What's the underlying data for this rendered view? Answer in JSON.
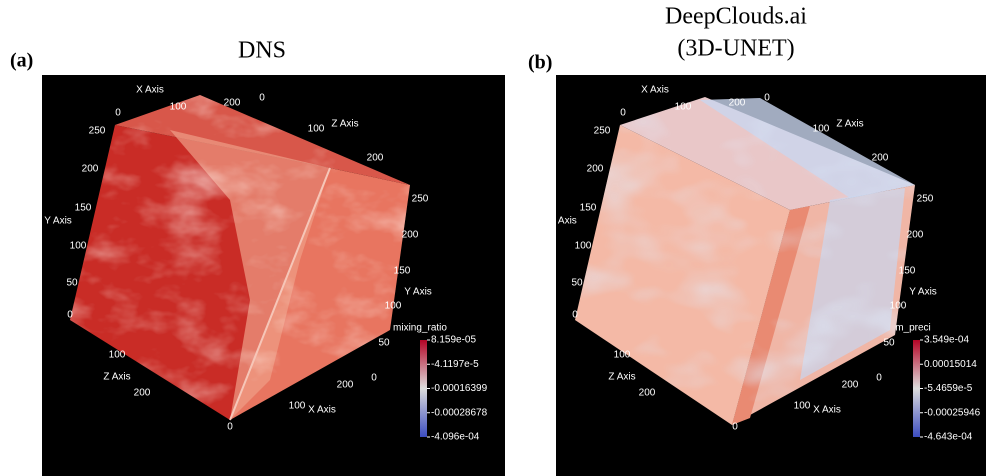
{
  "panels": [
    {
      "label": "(a)",
      "title": [
        "DNS"
      ],
      "axis_texts": [
        "X Axis",
        "0",
        "100",
        "200",
        "0",
        "100",
        "Z Axis",
        "200",
        "250",
        "200",
        "150",
        "Y Axis",
        "100",
        "50",
        "0",
        "250",
        "200",
        "150",
        "Y Axis",
        "100",
        "50",
        "0",
        "100",
        "Z Axis",
        "200",
        "0",
        "100",
        "X Axis",
        "200"
      ],
      "colorbar": {
        "title": "mixing_ratio",
        "labels": [
          "8.159e-05",
          "-4.1197e-5",
          "-0.00016399",
          "-0.00028678",
          "-4.096e-04"
        ]
      }
    },
    {
      "label": "(b)",
      "title": [
        "DeepClouds.ai",
        "(3D-UNET)"
      ],
      "axis_texts": [
        "X Axis",
        "0",
        "100",
        "200",
        "0",
        "100",
        "Z Axis",
        "200",
        "250",
        "200",
        "150",
        "Y Axis",
        "100",
        "50",
        "0",
        "250",
        "200",
        "150",
        "Y Axis",
        "100",
        "50",
        "0",
        "100",
        "Z Axis",
        "200",
        "0",
        "100",
        "X Axis",
        "200"
      ],
      "colorbar": {
        "title": "m_preci",
        "labels": [
          "3.549e-04",
          "0.00015014",
          "-5.4659e-5",
          "-0.00025946",
          "-4.643e-04"
        ]
      }
    }
  ]
}
